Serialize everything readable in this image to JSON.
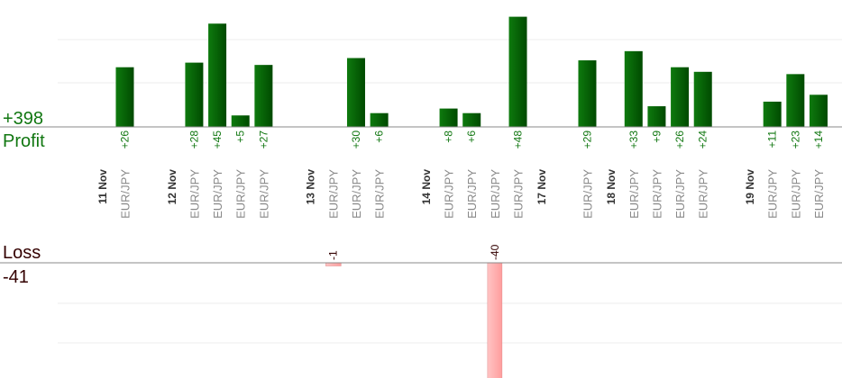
{
  "summary": {
    "profit_total": "+398",
    "profit_label": "Profit",
    "loss_label": "Loss",
    "loss_total": "-41"
  },
  "chart_data": {
    "type": "bar",
    "bars": [
      {
        "date": "11 Nov",
        "label": "EUR/JPY",
        "value": 26
      },
      {
        "date": "12 Nov",
        "label": "EUR/JPY",
        "value": 28
      },
      {
        "date": "12 Nov",
        "label": "EUR/JPY",
        "value": 45
      },
      {
        "date": "12 Nov",
        "label": "EUR/JPY",
        "value": 5
      },
      {
        "date": "12 Nov",
        "label": "EUR/JPY",
        "value": 27
      },
      {
        "date": "13 Nov",
        "label": "EUR/JPY",
        "value": -1
      },
      {
        "date": "13 Nov",
        "label": "EUR/JPY",
        "value": 30
      },
      {
        "date": "13 Nov",
        "label": "EUR/JPY",
        "value": 6
      },
      {
        "date": "14 Nov",
        "label": "EUR/JPY",
        "value": 8
      },
      {
        "date": "14 Nov",
        "label": "EUR/JPY",
        "value": 6
      },
      {
        "date": "14 Nov",
        "label": "EUR/JPY",
        "value": -40
      },
      {
        "date": "14 Nov",
        "label": "EUR/JPY",
        "value": 48
      },
      {
        "date": "17 Nov",
        "label": "EUR/JPY",
        "value": 29
      },
      {
        "date": "18 Nov",
        "label": "EUR/JPY",
        "value": 33
      },
      {
        "date": "18 Nov",
        "label": "EUR/JPY",
        "value": 9
      },
      {
        "date": "18 Nov",
        "label": "EUR/JPY",
        "value": 26
      },
      {
        "date": "18 Nov",
        "label": "EUR/JPY",
        "value": 24
      },
      {
        "date": "19 Nov",
        "label": "EUR/JPY",
        "value": 11
      },
      {
        "date": "19 Nov",
        "label": "EUR/JPY",
        "value": 23
      },
      {
        "date": "19 Nov",
        "label": "EUR/JPY",
        "value": 14
      }
    ],
    "value_labels": [
      "+26",
      "+28",
      "+45",
      "+5",
      "+27",
      "-1",
      "+30",
      "+6",
      "+8",
      "+6",
      "-40",
      "+48",
      "+29",
      "+33",
      "+9",
      "+26",
      "+24",
      "+11",
      "+23",
      "+14"
    ],
    "days": [
      {
        "label": "11 Nov",
        "slot": 0
      },
      {
        "label": "12 Nov",
        "slot": 3
      },
      {
        "label": "13 Nov",
        "slot": 9
      },
      {
        "label": "14 Nov",
        "slot": 14
      },
      {
        "label": "17 Nov",
        "slot": 19
      },
      {
        "label": "18 Nov",
        "slot": 22
      },
      {
        "label": "19 Nov",
        "slot": 28
      }
    ],
    "bar_slots": [
      1,
      4,
      5,
      6,
      7,
      10,
      11,
      12,
      15,
      16,
      17,
      18,
      21,
      23,
      24,
      25,
      26,
      29,
      30,
      31
    ],
    "colors": {
      "profit_bar": "#0b6b0b",
      "profit_bar_dark": "#004400",
      "profit_text": "#117711",
      "loss_bar": "#ffb0b0",
      "loss_bar_edge": "#e08a8a",
      "loss_text": "#330000",
      "tick_text": "#888888",
      "date_text": "#333333",
      "grid": "#eeeeee",
      "axis": "#888888"
    }
  }
}
